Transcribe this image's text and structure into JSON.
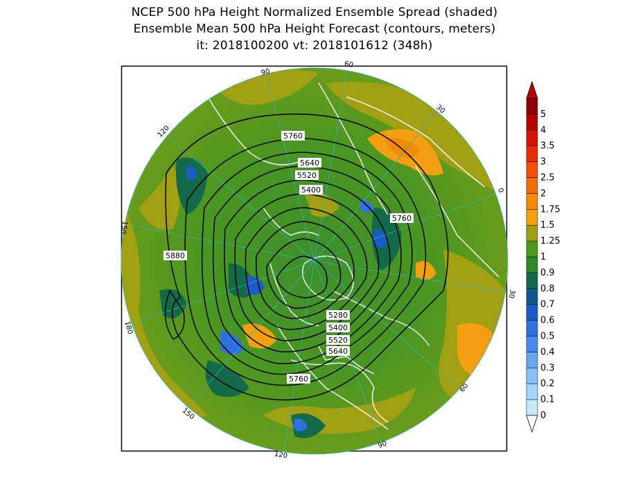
{
  "title": {
    "line1": "NCEP 500 hPa Height Normalized Ensemble Spread (shaded)",
    "line2": "Ensemble Mean 500 hPa Height Forecast (contours, meters)",
    "line3": "it: 2018100200      vt: 2018101612 (348h)"
  },
  "map": {
    "projection": "polar-stereographic-north",
    "longitude_labels": [
      "90",
      "60",
      "30",
      "0",
      "30",
      "60",
      "90",
      "120",
      "150",
      "180",
      "150",
      "120"
    ],
    "contour_labels": [
      "5760",
      "5640",
      "5520",
      "5400",
      "5760",
      "5880",
      "5280",
      "5400",
      "5520",
      "5640",
      "5760"
    ]
  },
  "colorbar": {
    "ticks": [
      "0",
      "0.1",
      "0.2",
      "0.3",
      "0.4",
      "0.5",
      "0.6",
      "0.7",
      "0.8",
      "0.9",
      "1",
      "1.25",
      "1.5",
      "1.75",
      "2",
      "2.5",
      "3",
      "3.5",
      "4",
      "5"
    ],
    "colors": [
      "#c6e8ff",
      "#a6d4fc",
      "#86bef8",
      "#68a6f2",
      "#4a8cea",
      "#2e72e0",
      "#1a5cc8",
      "#0f5a8a",
      "#136a48",
      "#2a8a2a",
      "#4c9a1c",
      "#a2a012",
      "#f2a012",
      "#f28a0a",
      "#f26e0a",
      "#f25008",
      "#ea2c06",
      "#d61204",
      "#b80202",
      "#8c0000"
    ]
  }
}
